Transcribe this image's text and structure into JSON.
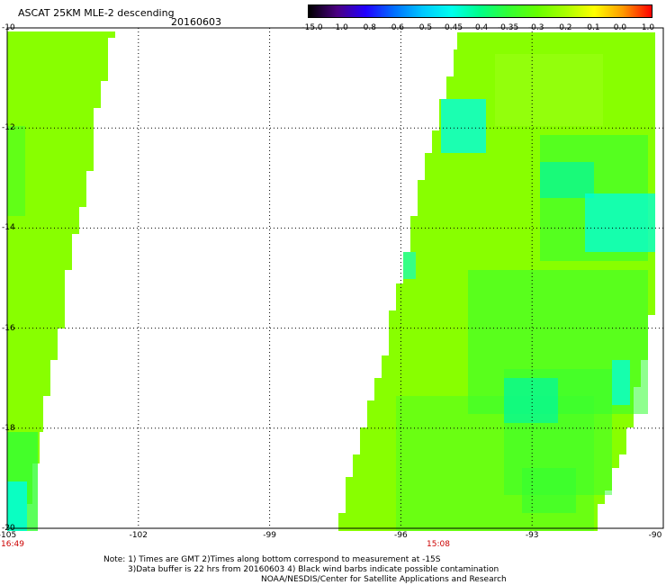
{
  "header": {
    "title": "ASCAT 25KM MLE-2 descending",
    "date": "20160603"
  },
  "colorbar": {
    "labels": [
      "-15.0",
      "-1.0",
      "-0.8",
      "-0.6",
      "-0.5",
      "-0.45",
      "-0.4",
      "-0.35",
      "-0.3",
      "-0.2",
      "-0.1",
      "0.0",
      "1.0"
    ],
    "colors": [
      "#000000",
      "#4b0082",
      "#2200ff",
      "#0070ff",
      "#00c8ff",
      "#00ffee",
      "#00ff88",
      "#33ff33",
      "#66ff00",
      "#aaff00",
      "#ffff00",
      "#ff9900",
      "#ff0000"
    ]
  },
  "axes": {
    "x_ticks": [
      "-105",
      "-102",
      "-99",
      "-96",
      "-93",
      "-90"
    ],
    "y_ticks": [
      "-10",
      "-12",
      "-14",
      "-16",
      "-18",
      "-20"
    ],
    "lon_range": [
      -105,
      -90
    ],
    "lat_range": [
      -20,
      -10
    ]
  },
  "swaths": {
    "colors": {
      "base": "#88ff00",
      "light": "#99ff11",
      "green": "#33ff33",
      "cyan": "#00ffdd",
      "aqua": "#00f8a0"
    },
    "left": {
      "time": "16:49"
    },
    "right": {
      "time": "15:08"
    }
  },
  "notes": [
    "Note: 1) Times are GMT 2)Times along bottom correspond to measurement at -15S",
    "3)Data buffer is 22 hrs from 20160603 4) Black wind barbs indicate possible contamination",
    "NOAA/NESDIS/Center for Satellite Applications and Research"
  ]
}
